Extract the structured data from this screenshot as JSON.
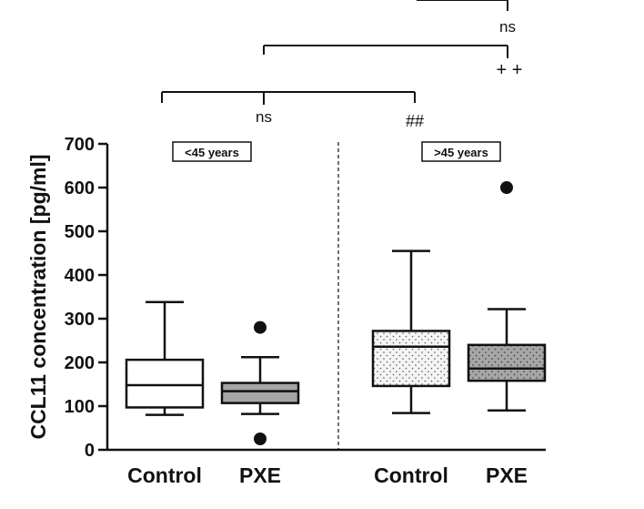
{
  "chart_data": {
    "type": "box",
    "ylabel": "CCL11 concentration [pg/ml]",
    "ylim": [
      0,
      700
    ],
    "yticks": [
      "0",
      "100",
      "200",
      "300",
      "400",
      "500",
      "600",
      "700"
    ],
    "groups": [
      {
        "label": "<45 years"
      },
      {
        "label": ">45 years"
      }
    ],
    "boxes": [
      {
        "category": "Control",
        "group": "<45 years",
        "whisker_low": 80,
        "q1": 97,
        "median": 148,
        "q3": 206,
        "whisker_high": 338,
        "outliers": [],
        "fill": "#ffffff",
        "pattern": "none"
      },
      {
        "category": "PXE",
        "group": "<45 years",
        "whisker_low": 82,
        "q1": 107,
        "median": 134,
        "q3": 153,
        "whisker_high": 212,
        "outliers": [
          280,
          25
        ],
        "fill": "#a6a6a6",
        "pattern": "none"
      },
      {
        "category": "Control",
        "group": ">45 years",
        "whisker_low": 84,
        "q1": 146,
        "median": 236,
        "q3": 272,
        "whisker_high": 455,
        "outliers": [],
        "fill": "#f4f4f4",
        "pattern": "dots-light"
      },
      {
        "category": "PXE",
        "group": ">45 years",
        "whisker_low": 90,
        "q1": 158,
        "median": 186,
        "q3": 240,
        "whisker_high": 322,
        "outliers": [
          600
        ],
        "fill": "#a6a6a6",
        "pattern": "dots-dark"
      }
    ],
    "significance": [
      {
        "text": "ns"
      },
      {
        "text": "##"
      },
      {
        "text": "+ +"
      },
      {
        "text": "ns"
      }
    ]
  }
}
